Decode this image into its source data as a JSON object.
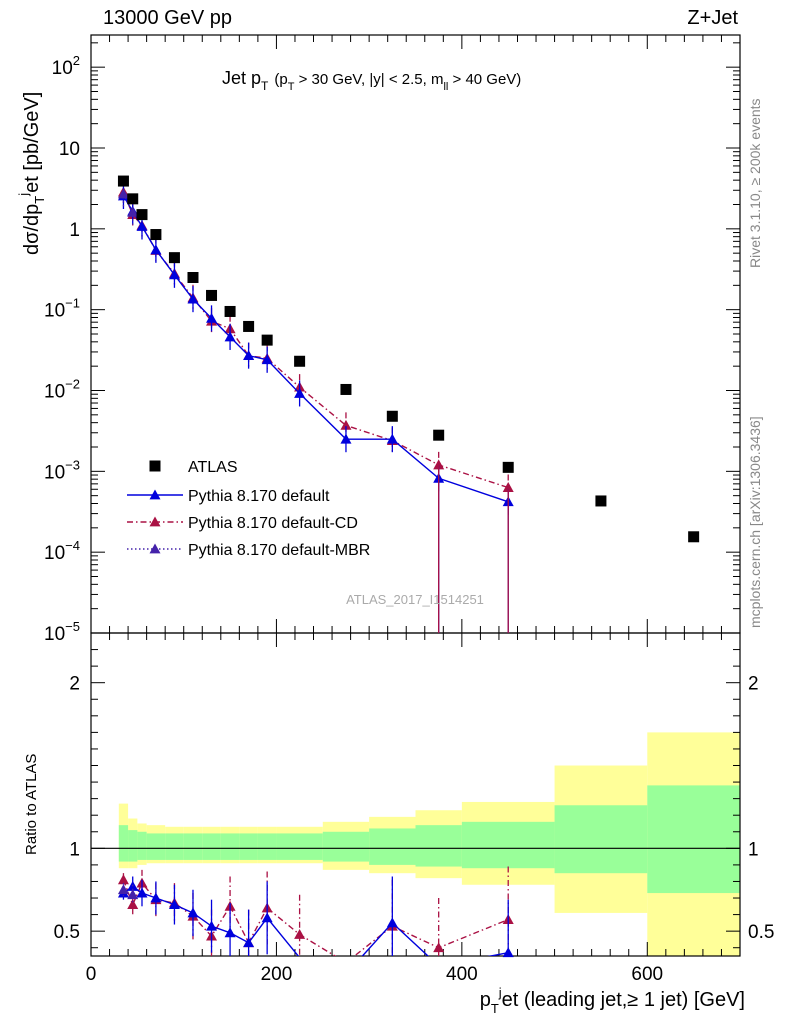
{
  "header": {
    "left": "13000 GeV pp",
    "right": "Z+Jet"
  },
  "side_text": {
    "top": "Rivet 3.1.10, ≥ 200k events",
    "bottom": "mcplots.cern.ch [arXiv:1306.3436]"
  },
  "plot_title": {
    "main": "Jet p",
    "main_sub": "T",
    "cuts_a": "(p",
    "cuts_a_sub": "T",
    "cuts_b": " > 30 GeV, |y| < 2.5, m",
    "cuts_b_sub": "ll",
    "cuts_c": " > 40 GeV)"
  },
  "watermark": "ATLAS_2017_I1514251",
  "upper_axis": {
    "ylabel": "dσ/dp",
    "ylabel_sub": "T",
    "ylabel_sup": "j",
    "ylabel_rest": "et [pb/GeV]",
    "ticks": [
      {
        "base": "10",
        "exp": "2"
      },
      {
        "base": "10",
        "exp": ""
      },
      {
        "base": "1",
        "exp": ""
      },
      {
        "base": "10",
        "exp": "−1"
      },
      {
        "base": "10",
        "exp": "−2"
      },
      {
        "base": "10",
        "exp": "−3"
      },
      {
        "base": "10",
        "exp": "−4"
      },
      {
        "base": "10",
        "exp": "−5"
      }
    ]
  },
  "lower_axis": {
    "ylabel": "Ratio to ATLAS",
    "left_ticks": [
      "2",
      "1",
      "0.5"
    ],
    "right_ticks": [
      "2",
      "1",
      "0.5"
    ]
  },
  "x_axis": {
    "label_a": "p",
    "label_sub": "T",
    "label_sup": "j",
    "label_b": "et (leading jet,≥ 1 jet) [GeV]",
    "ticks": [
      "0",
      "200",
      "400",
      "600"
    ]
  },
  "legend": [
    {
      "label": "ATLAS",
      "style": "data"
    },
    {
      "label": "Pythia 8.170 default",
      "style": "solid"
    },
    {
      "label": "Pythia 8.170 default-CD",
      "style": "dashdot"
    },
    {
      "label": "Pythia 8.170 default-MBR",
      "style": "dotted"
    }
  ],
  "colors": {
    "data": "#000000",
    "default": "#0000dd",
    "cd": "#aa1144",
    "mbr": "#4422aa",
    "band_inner": "#99ff99",
    "band_outer": "#ffff99"
  },
  "chart_data": {
    "type": "scatter",
    "x_range": [
      0,
      700
    ],
    "y_range_upper": [
      1e-05,
      250
    ],
    "y_scale_upper": "log",
    "y_range_ratio": [
      0.35,
      2.3
    ],
    "y_scale_ratio": "linear",
    "legend_position": "lower-left",
    "series": [
      {
        "name": "ATLAS",
        "x": [
          35,
          45,
          55,
          70,
          90,
          110,
          130,
          150,
          170,
          190,
          225,
          275,
          325,
          375,
          450,
          550,
          650
        ],
        "y": [
          3.9,
          2.35,
          1.5,
          0.85,
          0.44,
          0.25,
          0.15,
          0.095,
          0.062,
          0.042,
          0.023,
          0.0103,
          0.0048,
          0.0028,
          0.00112,
          0.00043,
          0.000155
        ]
      },
      {
        "name": "Pythia 8.170 default",
        "x": [
          35,
          45,
          55,
          70,
          90,
          110,
          130,
          150,
          170,
          190,
          225,
          275,
          325,
          375,
          450
        ],
        "y": [
          2.55,
          1.65,
          1.07,
          0.55,
          0.27,
          0.135,
          0.078,
          0.046,
          0.027,
          0.024,
          0.0092,
          0.0025,
          0.0025,
          0.00082,
          0.00042
        ],
        "ratio": [
          0.73,
          0.77,
          0.73,
          0.7,
          0.66,
          0.61,
          0.53,
          0.49,
          0.43,
          0.58,
          0.34,
          0.24,
          0.55,
          0.29,
          0.37
        ]
      },
      {
        "name": "Pythia 8.170 default-CD",
        "x": [
          35,
          45,
          55,
          70,
          90,
          110,
          130,
          150,
          170,
          190,
          225,
          275,
          325,
          375,
          450
        ],
        "y": [
          2.85,
          1.5,
          1.1,
          0.54,
          0.28,
          0.14,
          0.072,
          0.058,
          0.027,
          0.025,
          0.011,
          0.0037,
          0.0024,
          0.0012,
          0.00063
        ],
        "ratio": [
          0.81,
          0.66,
          0.79,
          0.69,
          0.67,
          0.59,
          0.47,
          0.65,
          0.43,
          0.64,
          0.48,
          0.31,
          0.53,
          0.4,
          0.57
        ]
      },
      {
        "name": "Pythia 8.170 default-MBR",
        "x": [
          35,
          45
        ],
        "y": [
          2.7,
          1.6
        ],
        "ratio": [
          0.75,
          0.72
        ]
      }
    ],
    "ratio_band_edges": [
      30,
      40,
      50,
      60,
      80,
      100,
      120,
      140,
      160,
      180,
      200,
      250,
      300,
      350,
      400,
      500,
      600,
      700
    ],
    "ratio_band_inner": [
      [
        0.92,
        1.14
      ],
      [
        0.92,
        1.11
      ],
      [
        0.93,
        1.1
      ],
      [
        0.93,
        1.09
      ],
      [
        0.93,
        1.09
      ],
      [
        0.93,
        1.09
      ],
      [
        0.93,
        1.09
      ],
      [
        0.93,
        1.09
      ],
      [
        0.93,
        1.09
      ],
      [
        0.93,
        1.09
      ],
      [
        0.93,
        1.09
      ],
      [
        0.92,
        1.1
      ],
      [
        0.9,
        1.12
      ],
      [
        0.89,
        1.14
      ],
      [
        0.88,
        1.16
      ],
      [
        0.85,
        1.26
      ],
      [
        0.73,
        1.38
      ]
    ],
    "ratio_band_outer": [
      [
        0.88,
        1.27
      ],
      [
        0.88,
        1.18
      ],
      [
        0.9,
        1.15
      ],
      [
        0.91,
        1.14
      ],
      [
        0.91,
        1.13
      ],
      [
        0.91,
        1.13
      ],
      [
        0.91,
        1.13
      ],
      [
        0.91,
        1.13
      ],
      [
        0.91,
        1.13
      ],
      [
        0.91,
        1.13
      ],
      [
        0.91,
        1.13
      ],
      [
        0.87,
        1.16
      ],
      [
        0.85,
        1.19
      ],
      [
        0.82,
        1.23
      ],
      [
        0.78,
        1.28
      ],
      [
        0.61,
        1.5
      ],
      [
        0.35,
        1.7
      ]
    ]
  }
}
